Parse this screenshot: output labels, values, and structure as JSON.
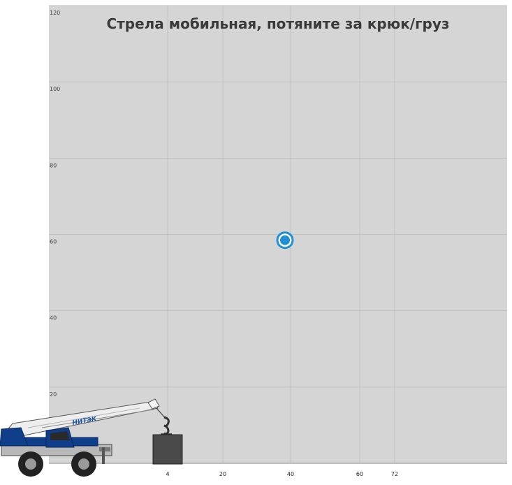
{
  "chart_data": {
    "type": "scatter",
    "title": "Стрела мобильная, потяните за крюк/груз",
    "xlabel": "",
    "ylabel": "",
    "x_ticks": [
      4,
      20,
      40,
      60,
      72
    ],
    "y_ticks": [
      20,
      40,
      60,
      80,
      100,
      120
    ],
    "ylim": [
      0,
      120
    ],
    "grid": true,
    "point": {
      "x": 40,
      "y": 58.5
    },
    "crane": {
      "brand": "НИТЭК"
    }
  },
  "colors": {
    "plot_background": "#d5d5d5",
    "grid": "#c2c2c2",
    "point": "#1e8fd0",
    "crane_body": "#0f3f8a",
    "load": "#4a4a4a"
  },
  "icons": [
    "drag-handle-icon",
    "crane-icon",
    "hook-icon"
  ]
}
